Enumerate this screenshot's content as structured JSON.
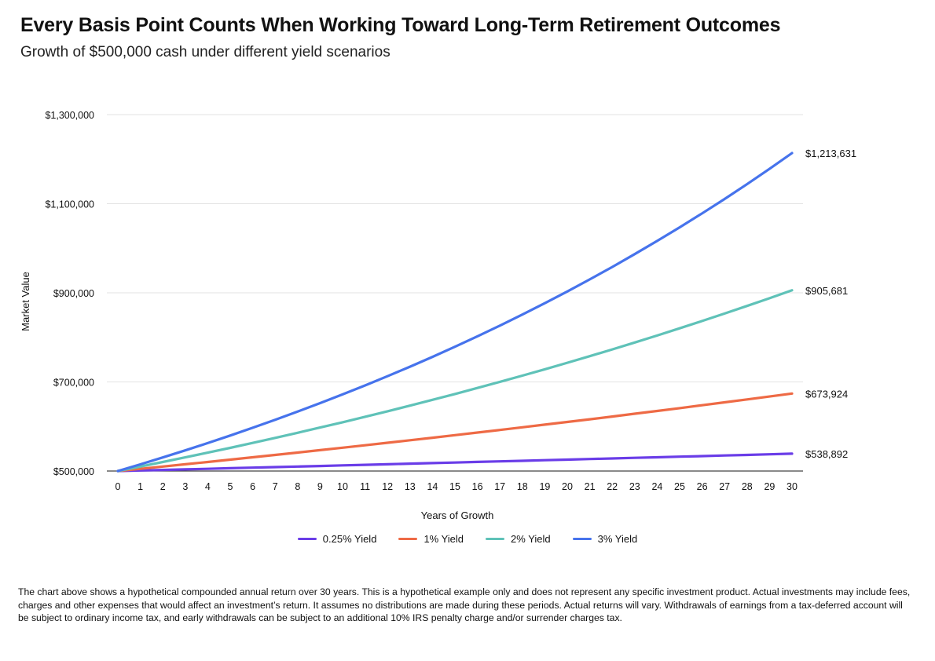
{
  "header": {
    "title": "Every Basis Point Counts When Working Toward Long-Term Retirement Outcomes",
    "subtitle": "Growth of $500,000 cash under different yield scenarios"
  },
  "chart_data": {
    "type": "line",
    "title": "Every Basis Point Counts When Working Toward Long-Term Retirement Outcomes",
    "subtitle": "Growth of $500,000 cash under different yield scenarios",
    "xlabel": "Years of Growth",
    "ylabel": "Market Value",
    "x": [
      0,
      1,
      2,
      3,
      4,
      5,
      6,
      7,
      8,
      9,
      10,
      11,
      12,
      13,
      14,
      15,
      16,
      17,
      18,
      19,
      20,
      21,
      22,
      23,
      24,
      25,
      26,
      27,
      28,
      29,
      30
    ],
    "ylim": [
      500000,
      1300000
    ],
    "yticks": [
      500000,
      700000,
      900000,
      1100000,
      1300000
    ],
    "ytick_labels": [
      "$500,000",
      "$700,000",
      "$900,000",
      "$1,100,000",
      "$1,300,000"
    ],
    "grid": true,
    "legend_position": "bottom",
    "series": [
      {
        "name": "0.25% Yield",
        "color": "#6a3de8",
        "values": [
          500000,
          501250,
          502503,
          503759,
          505019,
          506281,
          507547,
          508816,
          510088,
          511363,
          512641,
          513923,
          515208,
          516496,
          517787,
          519081,
          520379,
          521680,
          522984,
          524292,
          525602,
          526916,
          528234,
          529554,
          530878,
          532205,
          533536,
          534870,
          536207,
          537547,
          538892
        ],
        "end_label": "$538,892"
      },
      {
        "name": "1% Yield",
        "color": "#ee6a45",
        "values": [
          500000,
          505000,
          510050,
          515151,
          520302,
          525505,
          530760,
          536068,
          541428,
          546843,
          552311,
          557834,
          563413,
          569047,
          574737,
          580484,
          586289,
          592152,
          598074,
          604054,
          610095,
          616196,
          622358,
          628581,
          634867,
          641216,
          647628,
          654104,
          660645,
          667252,
          673924
        ],
        "end_label": "$673,924"
      },
      {
        "name": "2% Yield",
        "color": "#5fc2b8",
        "values": [
          500000,
          510000,
          520200,
          530604,
          541216,
          552040,
          563081,
          574343,
          585830,
          597546,
          609497,
          621687,
          634121,
          646803,
          659739,
          672934,
          686393,
          700121,
          714123,
          728406,
          742974,
          757833,
          772990,
          788450,
          804219,
          820303,
          836709,
          853443,
          870512,
          887923,
          905681
        ],
        "end_label": "$905,681"
      },
      {
        "name": "3% Yield",
        "color": "#4673ec",
        "values": [
          500000,
          515000,
          530450,
          546364,
          562754,
          579637,
          597026,
          614937,
          633385,
          652387,
          671958,
          692117,
          712880,
          734267,
          756295,
          778984,
          802353,
          826424,
          851216,
          876753,
          903056,
          930147,
          958052,
          986793,
          1016397,
          1046889,
          1078296,
          1110645,
          1143964,
          1178283,
          1213631
        ],
        "end_label": "$1,213,631"
      }
    ]
  },
  "footnote": "The chart above shows a hypothetical compounded annual return over 30 years. This is a hypothetical example only and does not represent any specific investment product. Actual investments may include fees, charges and other expenses that would affect an investment’s return. It assumes no distributions are made during these periods. Actual returns will vary. Withdrawals of earnings from a tax-deferred account will be subject to ordinary income tax, and early withdrawals can be subject to an additional 10% IRS penalty charge and/or surrender charges tax."
}
